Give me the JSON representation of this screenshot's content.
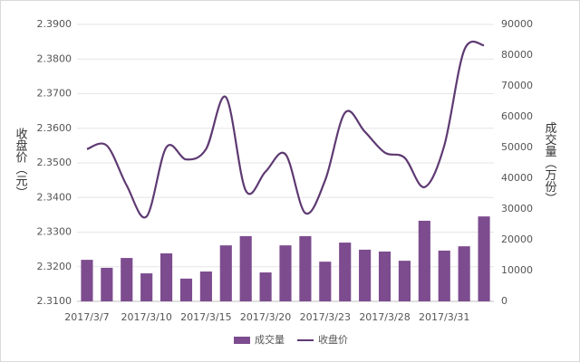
{
  "chart_data": {
    "type": "bar-line",
    "categories": [
      "2017/3/7",
      null,
      null,
      "2017/3/10",
      null,
      null,
      "2017/3/15",
      null,
      null,
      "2017/3/20",
      null,
      null,
      "2017/3/23",
      null,
      null,
      "2017/3/28",
      null,
      null,
      "2017/3/31",
      null,
      null
    ],
    "series": [
      {
        "name": "成交量",
        "type": "bar",
        "axis": "y2",
        "color": "#7d4c8f",
        "values": [
          13500,
          10900,
          14100,
          9100,
          15600,
          7400,
          9700,
          18200,
          21200,
          9400,
          18200,
          21200,
          12900,
          19100,
          16800,
          16200,
          13200,
          26200,
          16500,
          17900,
          27600
        ]
      },
      {
        "name": "收盘价",
        "type": "line",
        "color": "#5e3a72",
        "values": [
          2.354,
          2.355,
          2.3435,
          2.3345,
          2.3545,
          2.351,
          2.354,
          2.369,
          2.342,
          2.3475,
          2.3525,
          2.3355,
          2.345,
          2.3645,
          2.359,
          2.353,
          2.3515,
          2.343,
          2.355,
          2.3825,
          2.384
        ]
      }
    ],
    "ylabel": "收盘价（元）",
    "y2label": "成交量（万份）",
    "ylim": [
      2.31,
      2.39
    ],
    "yticks": [
      {
        "value": 2.31,
        "label": "2.3100"
      },
      {
        "value": 2.32,
        "label": "2.3200"
      },
      {
        "value": 2.33,
        "label": "2.3300"
      },
      {
        "value": 2.34,
        "label": "2.3400"
      },
      {
        "value": 2.35,
        "label": "2.3500"
      },
      {
        "value": 2.36,
        "label": "2.3600"
      },
      {
        "value": 2.37,
        "label": "2.3700"
      },
      {
        "value": 2.38,
        "label": "2.3800"
      },
      {
        "value": 2.39,
        "label": "2.3900"
      }
    ],
    "y2lim": [
      0,
      90000
    ],
    "y2ticks": [
      0,
      10000,
      20000,
      30000,
      40000,
      50000,
      60000,
      70000,
      80000,
      90000
    ],
    "legend": "bottom"
  }
}
